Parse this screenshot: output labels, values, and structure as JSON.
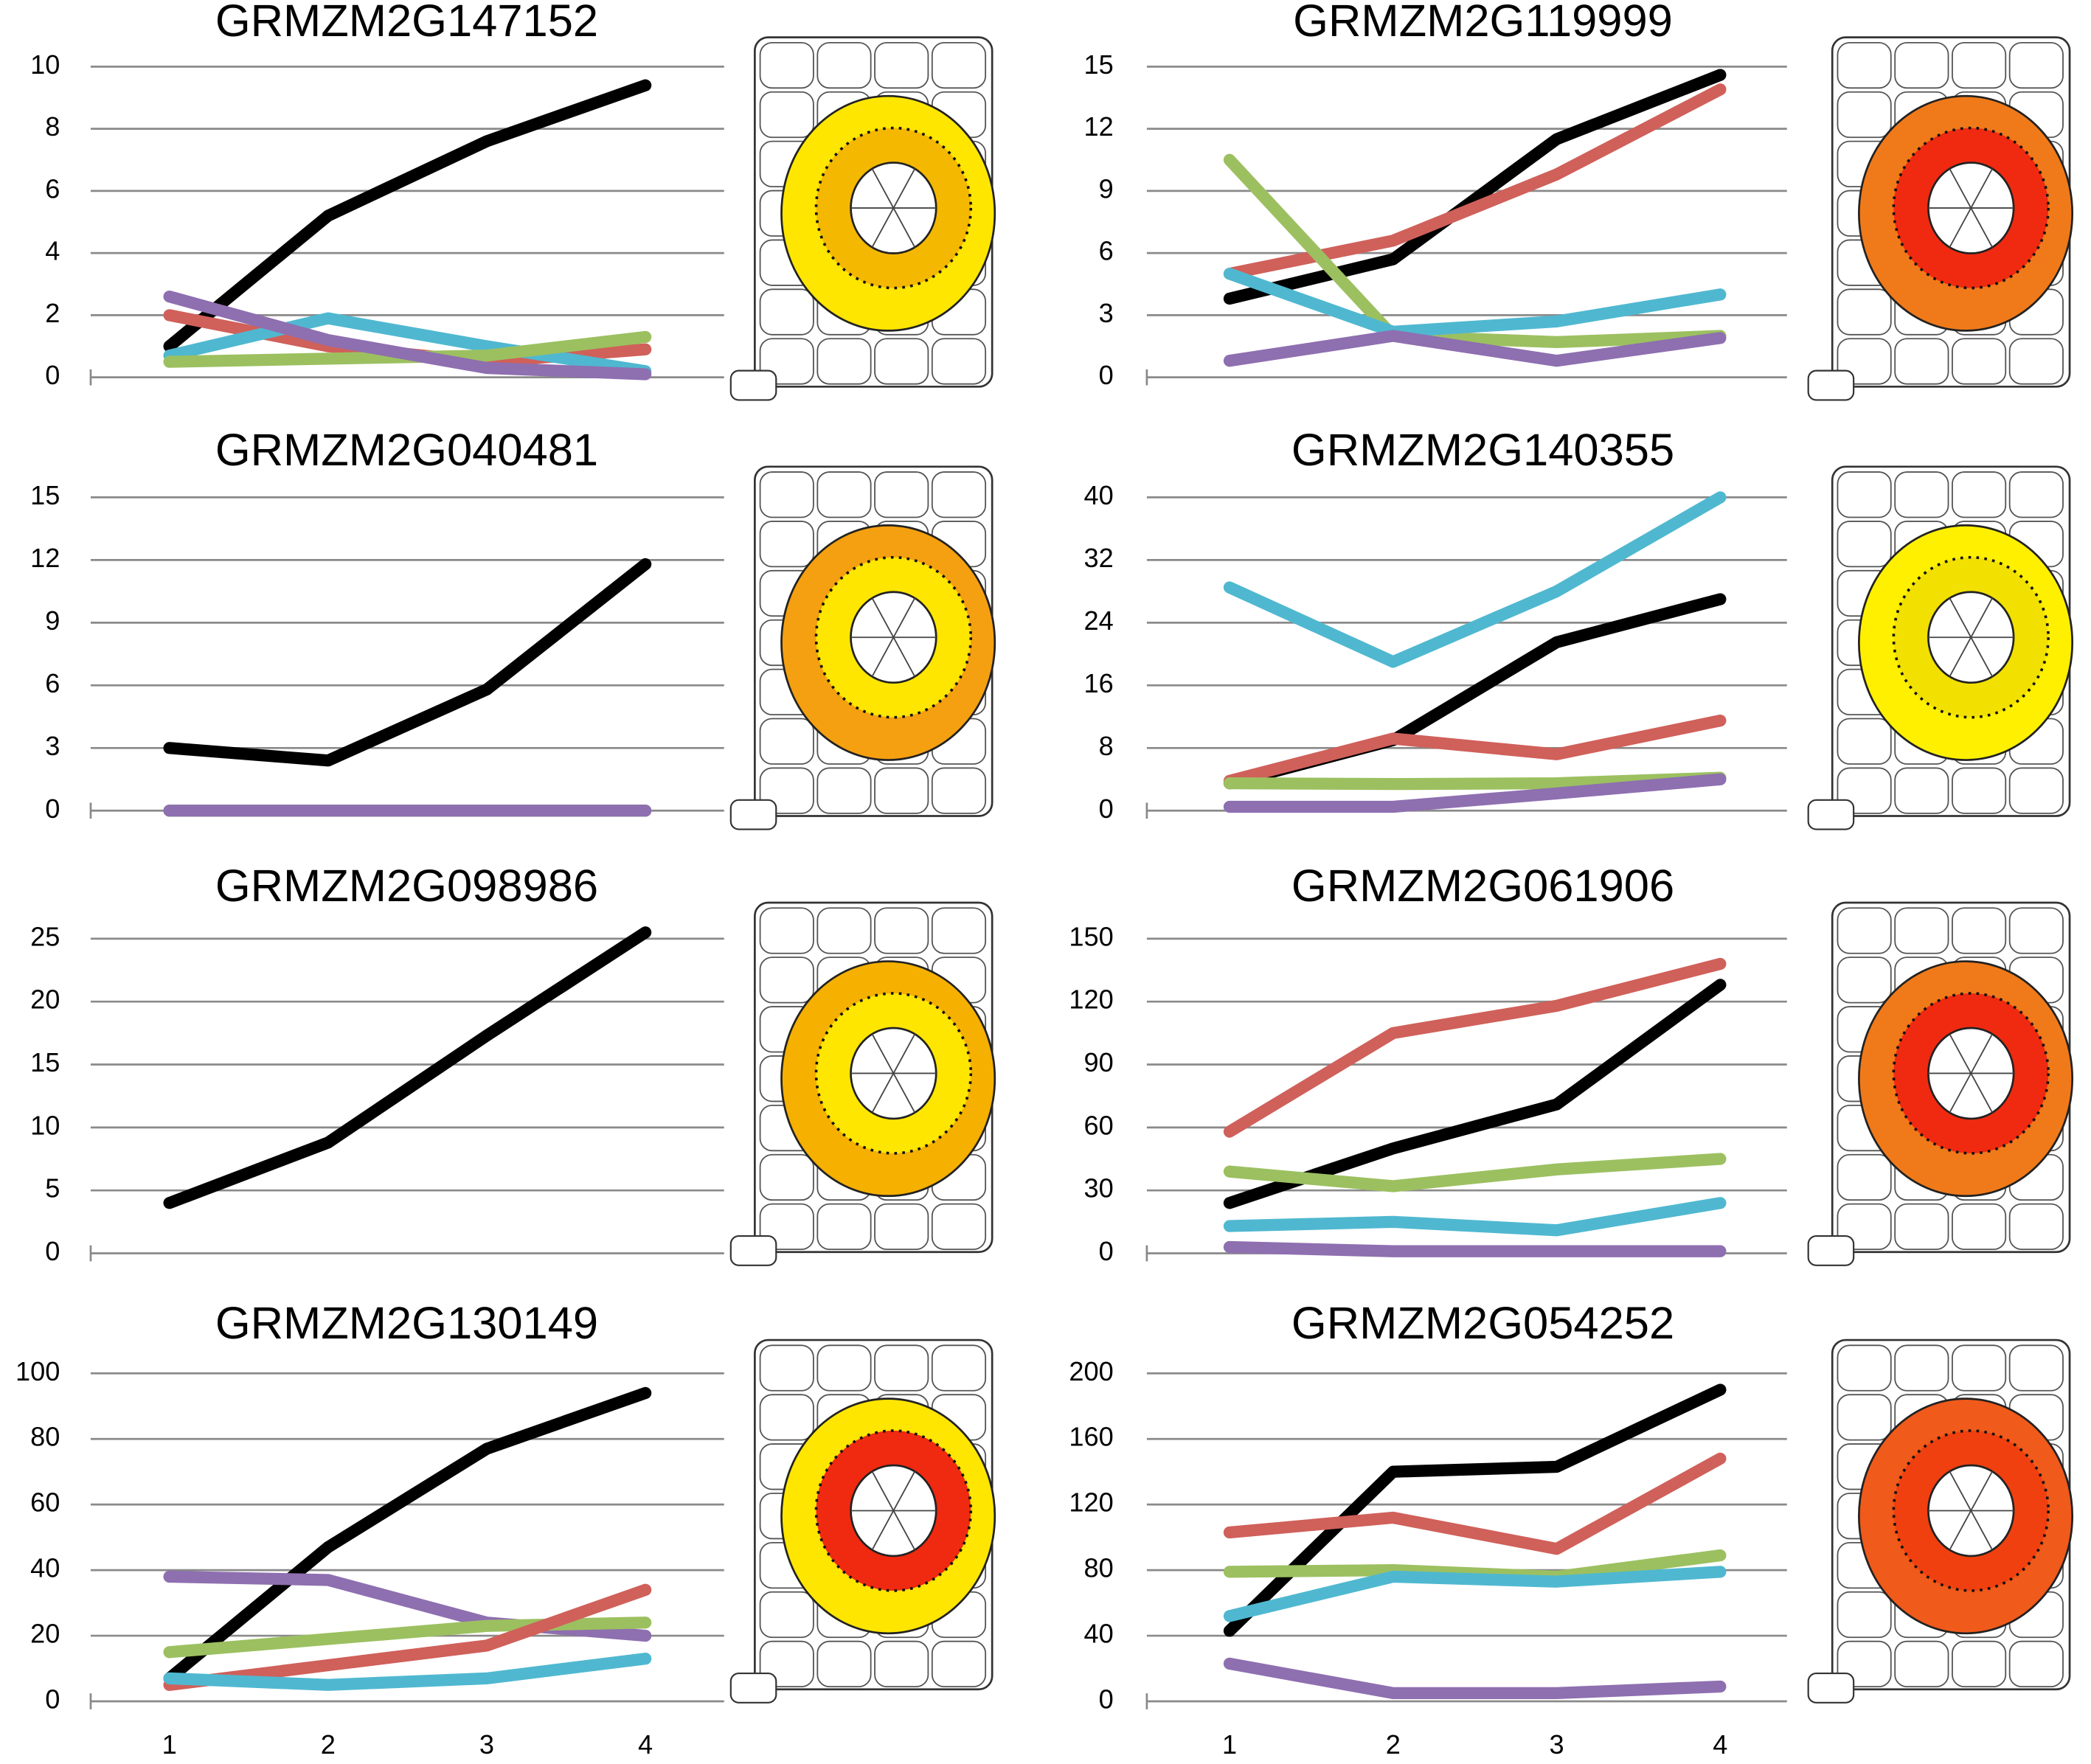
{
  "chart_data": [
    {
      "type": "line",
      "title": "GRMZM2G147152",
      "x": [
        1,
        2,
        3,
        4
      ],
      "ylim": [
        0,
        10
      ],
      "yticks": [
        0,
        2,
        4,
        6,
        8,
        10
      ],
      "grid": true,
      "series": [
        {
          "color": "#000000",
          "values": [
            1.0,
            5.2,
            7.6,
            9.4
          ]
        },
        {
          "color": "#d0605a",
          "values": [
            2.0,
            1.0,
            0.5,
            0.9
          ]
        },
        {
          "color": "#4fb8d0",
          "values": [
            0.7,
            1.9,
            1.0,
            0.2
          ]
        },
        {
          "color": "#9cc060",
          "values": [
            0.5,
            0.6,
            0.7,
            1.3
          ]
        },
        {
          "color": "#8e6fb0",
          "values": [
            2.6,
            1.2,
            0.3,
            0.1
          ]
        }
      ]
    },
    {
      "type": "line",
      "title": "GRMZM2G119999",
      "x": [
        1,
        2,
        3,
        4
      ],
      "ylim": [
        0,
        15
      ],
      "yticks": [
        0,
        3,
        6,
        9,
        12,
        15
      ],
      "grid": true,
      "series": [
        {
          "color": "#000000",
          "values": [
            3.8,
            5.7,
            11.5,
            14.6
          ]
        },
        {
          "color": "#d0605a",
          "values": [
            5.0,
            6.6,
            9.8,
            13.9
          ]
        },
        {
          "color": "#9cc060",
          "values": [
            10.5,
            2.0,
            1.7,
            2.0
          ]
        },
        {
          "color": "#4fb8d0",
          "values": [
            5.0,
            2.2,
            2.7,
            4.0
          ]
        },
        {
          "color": "#8e6fb0",
          "values": [
            0.8,
            2.0,
            0.8,
            1.9
          ]
        }
      ]
    },
    {
      "type": "line",
      "title": "GRMZM2G040481",
      "x": [
        1,
        2,
        3,
        4
      ],
      "ylim": [
        0,
        15
      ],
      "yticks": [
        0,
        3,
        6,
        9,
        12,
        15
      ],
      "grid": true,
      "series": [
        {
          "color": "#000000",
          "values": [
            3.0,
            2.4,
            5.8,
            11.8
          ]
        },
        {
          "color": "#d0605a",
          "values": [
            0,
            0,
            0,
            0
          ]
        },
        {
          "color": "#4fb8d0",
          "values": [
            0,
            0,
            0,
            0
          ]
        },
        {
          "color": "#9cc060",
          "values": [
            0,
            0,
            0,
            0
          ]
        },
        {
          "color": "#8e6fb0",
          "values": [
            0,
            0,
            0,
            0
          ]
        }
      ]
    },
    {
      "type": "line",
      "title": "GRMZM2G140355",
      "x": [
        1,
        2,
        3,
        4
      ],
      "ylim": [
        0,
        40
      ],
      "yticks": [
        0,
        8,
        16,
        24,
        32,
        40
      ],
      "grid": true,
      "series": [
        {
          "color": "#4fb8d0",
          "values": [
            28.5,
            19,
            28,
            40
          ]
        },
        {
          "color": "#000000",
          "values": [
            3.5,
            9,
            21.5,
            27
          ]
        },
        {
          "color": "#d0605a",
          "values": [
            3.8,
            9.2,
            7.2,
            11.5
          ]
        },
        {
          "color": "#9cc060",
          "values": [
            3.5,
            3.4,
            3.5,
            4.2
          ]
        },
        {
          "color": "#8e6fb0",
          "values": [
            0.5,
            0.5,
            2.2,
            4.0
          ]
        }
      ]
    },
    {
      "type": "line",
      "title": "GRMZM2G098986",
      "x": [
        1,
        2,
        3,
        4
      ],
      "ylim": [
        0,
        25
      ],
      "yticks": [
        0,
        5,
        10,
        15,
        20,
        25
      ],
      "grid": true,
      "series": [
        {
          "color": "#000000",
          "values": [
            4,
            8.8,
            17.3,
            25.5
          ]
        }
      ]
    },
    {
      "type": "line",
      "title": "GRMZM2G061906",
      "x": [
        1,
        2,
        3,
        4
      ],
      "ylim": [
        0,
        150
      ],
      "yticks": [
        0,
        30,
        60,
        90,
        120,
        150
      ],
      "grid": true,
      "series": [
        {
          "color": "#d0605a",
          "values": [
            58,
            105,
            118,
            138
          ]
        },
        {
          "color": "#000000",
          "values": [
            24,
            50,
            71,
            128
          ]
        },
        {
          "color": "#9cc060",
          "values": [
            39,
            32,
            40,
            45
          ]
        },
        {
          "color": "#4fb8d0",
          "values": [
            13,
            15,
            11,
            24
          ]
        },
        {
          "color": "#8e6fb0",
          "values": [
            3,
            1,
            1,
            1
          ]
        }
      ]
    },
    {
      "type": "line",
      "title": "GRMZM2G130149",
      "x": [
        1,
        2,
        3,
        4
      ],
      "ylim": [
        0,
        100
      ],
      "yticks": [
        0,
        20,
        40,
        60,
        80,
        100
      ],
      "grid": true,
      "xticks_shown": true,
      "series": [
        {
          "color": "#000000",
          "values": [
            7,
            47,
            77,
            94
          ]
        },
        {
          "color": "#8e6fb0",
          "values": [
            38,
            37,
            24,
            20
          ]
        },
        {
          "color": "#9cc060",
          "values": [
            15,
            19,
            23,
            24
          ]
        },
        {
          "color": "#d0605a",
          "values": [
            5,
            11,
            17,
            34
          ]
        },
        {
          "color": "#4fb8d0",
          "values": [
            7,
            5,
            7,
            13
          ]
        }
      ]
    },
    {
      "type": "line",
      "title": "GRMZM2G054252",
      "x": [
        1,
        2,
        3,
        4
      ],
      "ylim": [
        0,
        200
      ],
      "yticks": [
        0,
        40,
        80,
        120,
        160,
        200
      ],
      "grid": true,
      "xticks_shown": true,
      "series": [
        {
          "color": "#000000",
          "values": [
            43,
            140,
            143,
            190
          ]
        },
        {
          "color": "#d0605a",
          "values": [
            103,
            112,
            93,
            148
          ]
        },
        {
          "color": "#9cc060",
          "values": [
            79,
            80,
            76,
            89
          ]
        },
        {
          "color": "#4fb8d0",
          "values": [
            52,
            76,
            73,
            79
          ]
        },
        {
          "color": "#8e6fb0",
          "values": [
            23,
            5,
            5,
            9
          ]
        }
      ]
    }
  ]
}
